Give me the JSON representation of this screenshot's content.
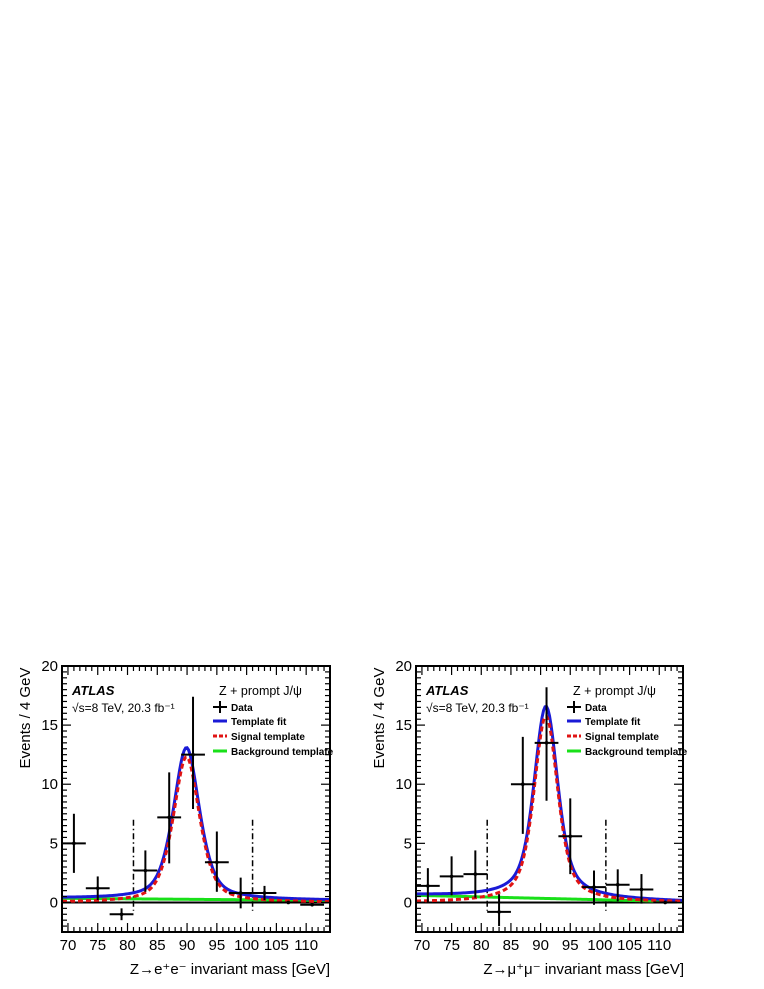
{
  "chart_data": [
    {
      "type": "line",
      "atlas_label": "ATLAS",
      "energy_label": "√s=8 TeV, 20.3 fb⁻¹",
      "process_label": "Z + prompt J/ψ",
      "xlabel": "Z→e⁺e⁻ invariant mass [GeV]",
      "ylabel": "Events / 4 GeV",
      "xlim": [
        69,
        114
      ],
      "ylim": [
        -2.5,
        20
      ],
      "xticks": [
        70,
        75,
        80,
        85,
        90,
        95,
        100,
        105,
        110
      ],
      "yticks": [
        0,
        5,
        10,
        15,
        20
      ],
      "signal_window": [
        81,
        101
      ],
      "legend": [
        "Data",
        "Template fit",
        "Signal template",
        "Background template"
      ],
      "colors": {
        "data": "#000000",
        "template_fit": "#1a1ad6",
        "signal_template": "#e01414",
        "background_template": "#19e019"
      },
      "data": [
        {
          "x": 71,
          "y": 5.0,
          "yerr": [
            2.5,
            2.5
          ]
        },
        {
          "x": 75,
          "y": 1.2,
          "yerr": [
            1.0,
            1.0
          ]
        },
        {
          "x": 79,
          "y": -1.0,
          "yerr": [
            0.5,
            0.5
          ]
        },
        {
          "x": 83,
          "y": 2.7,
          "yerr": [
            1.8,
            1.7
          ]
        },
        {
          "x": 87,
          "y": 7.2,
          "yerr": [
            3.9,
            3.8
          ]
        },
        {
          "x": 91,
          "y": 12.5,
          "yerr": [
            4.6,
            4.9
          ]
        },
        {
          "x": 95,
          "y": 3.4,
          "yerr": [
            2.5,
            2.6
          ]
        },
        {
          "x": 99,
          "y": 0.8,
          "yerr": [
            1.3,
            1.3
          ]
        },
        {
          "x": 103,
          "y": 0.8,
          "yerr": [
            0.6,
            0.6
          ]
        },
        {
          "x": 107,
          "y": 0.0,
          "yerr": [
            0.0,
            0.0
          ]
        },
        {
          "x": 111,
          "y": -0.2,
          "yerr": [
            0.0,
            0.0
          ]
        }
      ],
      "fit_model": {
        "peak_x": 89.9,
        "peak_y": 13.1,
        "gauss_sigma": 2.3,
        "bw_gamma": 2.5,
        "bw_frac": 0.55,
        "signal_scale": 0.96,
        "background_level": 0.35,
        "background_slope": -0.004
      }
    },
    {
      "type": "line",
      "atlas_label": "ATLAS",
      "energy_label": "√s=8 TeV, 20.3 fb⁻¹",
      "process_label": "Z + prompt J/ψ",
      "xlabel": "Z→μ⁺μ⁻ invariant mass [GeV]",
      "ylabel": "Events / 4 GeV",
      "xlim": [
        69,
        114
      ],
      "ylim": [
        -2.5,
        20
      ],
      "xticks": [
        70,
        75,
        80,
        85,
        90,
        95,
        100,
        105,
        110
      ],
      "yticks": [
        0,
        5,
        10,
        15,
        20
      ],
      "signal_window": [
        81,
        101
      ],
      "legend": [
        "Data",
        "Template fit",
        "Signal template",
        "Background template"
      ],
      "colors": {
        "data": "#000000",
        "template_fit": "#1a1ad6",
        "signal_template": "#e01414",
        "background_template": "#19e019"
      },
      "data": [
        {
          "x": 71,
          "y": 1.4,
          "yerr": [
            1.4,
            1.5
          ]
        },
        {
          "x": 75,
          "y": 2.2,
          "yerr": [
            1.6,
            1.7
          ]
        },
        {
          "x": 79,
          "y": 2.4,
          "yerr": [
            2.0,
            2.0
          ]
        },
        {
          "x": 83,
          "y": -0.8,
          "yerr": [
            1.2,
            1.5
          ]
        },
        {
          "x": 87,
          "y": 10.0,
          "yerr": [
            4.2,
            4.0
          ]
        },
        {
          "x": 91,
          "y": 13.5,
          "yerr": [
            4.9,
            4.7
          ]
        },
        {
          "x": 95,
          "y": 5.6,
          "yerr": [
            3.2,
            3.2
          ]
        },
        {
          "x": 99,
          "y": 1.3,
          "yerr": [
            1.5,
            1.4
          ]
        },
        {
          "x": 103,
          "y": 1.5,
          "yerr": [
            1.4,
            1.3
          ]
        },
        {
          "x": 107,
          "y": 1.1,
          "yerr": [
            1.2,
            1.3
          ]
        },
        {
          "x": 111,
          "y": 0.0,
          "yerr": [
            0.0,
            0.0
          ]
        }
      ],
      "fit_model": {
        "peak_x": 90.9,
        "peak_y": 16.6,
        "gauss_sigma": 1.9,
        "bw_gamma": 2.6,
        "bw_frac": 0.55,
        "signal_scale": 0.97,
        "background_level": 0.6,
        "background_slope": -0.012
      }
    }
  ]
}
